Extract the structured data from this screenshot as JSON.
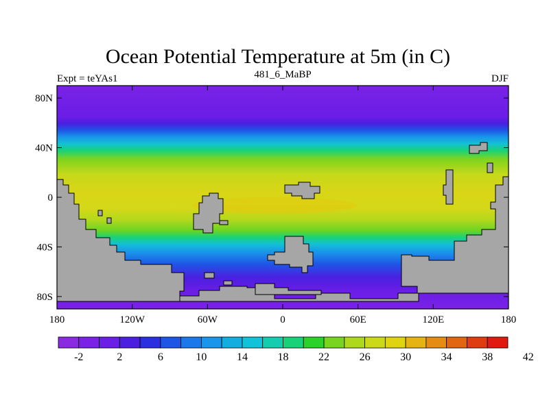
{
  "title": "Ocean Potential Temperature at 5m (in C)",
  "left_label": "Expt = teYAs1",
  "center_label": "481_6_MaBP",
  "right_label": "DJF",
  "lat_ticks": [
    {
      "label": "80N",
      "lat": 80
    },
    {
      "label": "40N",
      "lat": 40
    },
    {
      "label": "0",
      "lat": 0
    },
    {
      "label": "40S",
      "lat": -40
    },
    {
      "label": "80S",
      "lat": -80
    }
  ],
  "lon_ticks": [
    {
      "label": "180",
      "lon": -180
    },
    {
      "label": "120W",
      "lon": -120
    },
    {
      "label": "60W",
      "lon": -60
    },
    {
      "label": "0",
      "lon": 0
    },
    {
      "label": "60E",
      "lon": 60
    },
    {
      "label": "120E",
      "lon": 120
    },
    {
      "label": "180",
      "lon": 180
    }
  ],
  "colorbar": {
    "labels": [
      "-2",
      "2",
      "6",
      "10",
      "14",
      "18",
      "22",
      "26",
      "30",
      "34",
      "38",
      "42"
    ],
    "colors": [
      "#8a2be2",
      "#7a22e6",
      "#6a1ee6",
      "#4b1fe0",
      "#2a2fe0",
      "#1f55e6",
      "#1a78ea",
      "#1995ea",
      "#13aee0",
      "#10c3d8",
      "#14cdb0",
      "#18d27a",
      "#2ad22a",
      "#78d41e",
      "#aed81c",
      "#ccd918",
      "#dfd312",
      "#e5b412",
      "#e58d12",
      "#e06612",
      "#e03c12",
      "#e01a10"
    ]
  },
  "legend_colors": {
    "land": "#a6a6a6",
    "ocean_polar": "#7a22e6",
    "ocean_tropical": "#d6d618"
  },
  "chart_data": {
    "type": "heatmap",
    "title": "Ocean Potential Temperature at 5m (in C)",
    "x_range": [
      -180,
      180
    ],
    "y_range": [
      -90,
      90
    ],
    "color_range": [
      -2,
      42
    ],
    "zonal_mean_profile": [
      {
        "lat": 90,
        "value": -2
      },
      {
        "lat": 60,
        "value": -1
      },
      {
        "lat": 52,
        "value": 6
      },
      {
        "lat": 45,
        "value": 14
      },
      {
        "lat": 38,
        "value": 22
      },
      {
        "lat": 30,
        "value": 26
      },
      {
        "lat": 15,
        "value": 29
      },
      {
        "lat": 0,
        "value": 31
      },
      {
        "lat": -15,
        "value": 30
      },
      {
        "lat": -25,
        "value": 28
      },
      {
        "lat": -35,
        "value": 24
      },
      {
        "lat": -42,
        "value": 20
      },
      {
        "lat": -50,
        "value": 14
      },
      {
        "lat": -58,
        "value": 10
      },
      {
        "lat": -65,
        "value": 6
      },
      {
        "lat": -75,
        "value": 2
      },
      {
        "lat": -80,
        "value": -1
      }
    ]
  }
}
